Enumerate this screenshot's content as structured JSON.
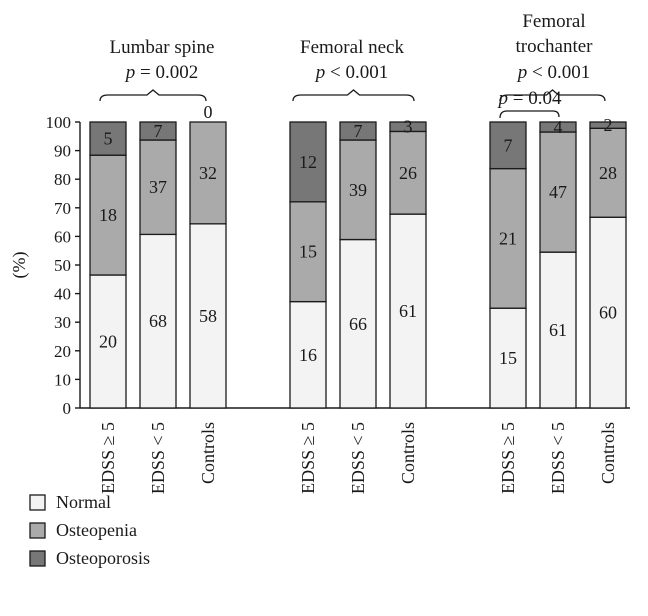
{
  "chart_data": {
    "type": "stacked-bar-100",
    "ylabel": "(%)",
    "ylim": [
      0,
      100
    ],
    "yticks": [
      0,
      10,
      20,
      30,
      40,
      50,
      60,
      70,
      80,
      90,
      100
    ],
    "series_names": [
      "Normal",
      "Osteopenia",
      "Osteoporosis"
    ],
    "colors": {
      "Normal": "#f3f3f3",
      "Osteopenia": "#aaaaaa",
      "Osteoporosis": "#777777"
    },
    "groups": [
      {
        "title_lines": [
          "Lumbar spine"
        ],
        "p_prefix": "p",
        "p_text": " = 0.002",
        "bars": [
          {
            "label": "EDSS ≥ 5",
            "counts": [
              20,
              18,
              5
            ],
            "count_labels": [
              "20",
              "18",
              "5"
            ],
            "percents": [
              46.5,
              41.9,
              11.6
            ]
          },
          {
            "label": "EDSS < 5",
            "counts": [
              68,
              37,
              7
            ],
            "count_labels": [
              "68",
              "37",
              "7"
            ],
            "percents": [
              60.7,
              33.0,
              6.3
            ]
          },
          {
            "label": "Controls",
            "counts": [
              58,
              32,
              0
            ],
            "count_labels": [
              "58",
              "32",
              "0"
            ],
            "percents": [
              64.4,
              35.6,
              0.0
            ]
          }
        ]
      },
      {
        "title_lines": [
          "Femoral neck"
        ],
        "p_prefix": "p",
        "p_text": " < 0.001",
        "bars": [
          {
            "label": "EDSS ≥ 5",
            "counts": [
              16,
              15,
              12
            ],
            "count_labels": [
              "16",
              "15",
              "12"
            ],
            "percents": [
              37.2,
              34.9,
              27.9
            ]
          },
          {
            "label": "EDSS < 5",
            "counts": [
              66,
              39,
              7
            ],
            "count_labels": [
              "66",
              "39",
              "7"
            ],
            "percents": [
              58.9,
              34.8,
              6.3
            ]
          },
          {
            "label": "Controls",
            "counts": [
              61,
              26,
              3
            ],
            "count_labels": [
              "61",
              "26",
              "3"
            ],
            "percents": [
              67.8,
              28.9,
              3.3
            ]
          }
        ]
      },
      {
        "title_lines": [
          "Femoral",
          "trochanter"
        ],
        "p_prefix": "p",
        "p_text": " < 0.001",
        "sub_p_prefix": "p",
        "sub_p_text": " = 0.04",
        "bars": [
          {
            "label": "EDSS ≥ 5",
            "counts": [
              15,
              21,
              7
            ],
            "count_labels": [
              "15",
              "21",
              "7"
            ],
            "percents": [
              34.9,
              48.8,
              16.3
            ]
          },
          {
            "label": "EDSS < 5",
            "counts": [
              61,
              47,
              4
            ],
            "count_labels": [
              "61",
              "47",
              "4"
            ],
            "percents": [
              54.5,
              42.0,
              3.5
            ]
          },
          {
            "label": "Controls",
            "counts": [
              60,
              28,
              2
            ],
            "count_labels": [
              "60",
              "28",
              "2"
            ],
            "percents": [
              66.7,
              31.1,
              2.2
            ]
          }
        ]
      }
    ],
    "legend_position": "bottom-left"
  }
}
